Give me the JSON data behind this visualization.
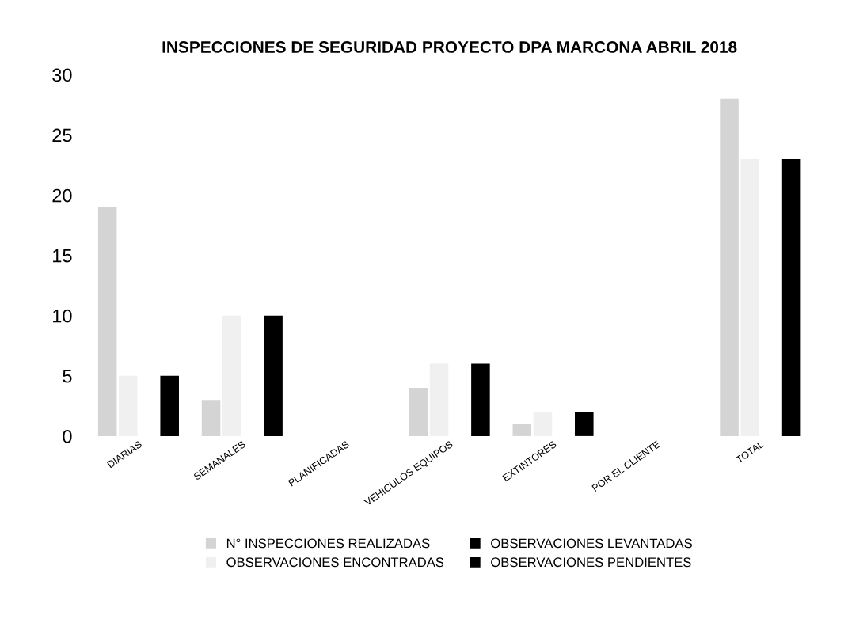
{
  "chart_data": {
    "type": "bar",
    "title": "INSPECCIONES DE SEGURIDAD PROYECTO DPA MARCONA ABRIL 2018",
    "categories": [
      "DIARIAS",
      "SEMANALES",
      "PLANIFICADAS",
      "VEHICULOS EQUIPOS",
      "EXTINTORES",
      "POR EL CLIENTE",
      "TOTAL"
    ],
    "series": [
      {
        "name": "N° INSPECCIONES REALIZADAS",
        "color": "#d4d4d4",
        "values": [
          19,
          3,
          0,
          4,
          1,
          0,
          28
        ]
      },
      {
        "name": "OBSERVACIONES ENCONTRADAS",
        "color": "#f0f0f0",
        "values": [
          5,
          10,
          0,
          6,
          2,
          0,
          23
        ]
      },
      {
        "name": "OBSERVACIONES LEVANTADAS",
        "color": "#000000",
        "values": [
          0,
          0,
          0,
          0,
          0,
          0,
          0
        ]
      },
      {
        "name": "OBSERVACIONES PENDIENTES",
        "color": "#000000",
        "values": [
          5,
          10,
          0,
          6,
          2,
          0,
          23
        ]
      }
    ],
    "ylim": [
      0,
      30
    ],
    "yticks": [
      0,
      5,
      10,
      15,
      20,
      25,
      30
    ],
    "grid": false,
    "legend": "bottom"
  }
}
